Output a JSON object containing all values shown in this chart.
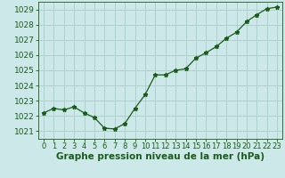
{
  "x": [
    0,
    1,
    2,
    3,
    4,
    5,
    6,
    7,
    8,
    9,
    10,
    11,
    12,
    13,
    14,
    15,
    16,
    17,
    18,
    19,
    20,
    21,
    22,
    23
  ],
  "y": [
    1022.2,
    1022.5,
    1022.4,
    1022.6,
    1022.2,
    1021.9,
    1021.2,
    1021.15,
    1021.5,
    1022.5,
    1023.4,
    1024.7,
    1024.7,
    1025.0,
    1025.1,
    1025.8,
    1026.15,
    1026.55,
    1027.1,
    1027.5,
    1028.2,
    1028.65,
    1029.05,
    1029.15
  ],
  "line_color": "#1a5c1a",
  "marker": "*",
  "bg_color": "#cce8e8",
  "grid_color": "#b0d0d0",
  "title": "Graphe pression niveau de la mer (hPa)",
  "xlabel_ticks": [
    "0",
    "1",
    "2",
    "3",
    "4",
    "5",
    "6",
    "7",
    "8",
    "9",
    "10",
    "11",
    "12",
    "13",
    "14",
    "15",
    "16",
    "17",
    "18",
    "19",
    "20",
    "21",
    "22",
    "23"
  ],
  "ylim": [
    1020.5,
    1029.5
  ],
  "yticks": [
    1021,
    1022,
    1023,
    1024,
    1025,
    1026,
    1027,
    1028,
    1029
  ],
  "title_color": "#1a5c1a",
  "title_fontsize": 7.5,
  "tick_fontsize": 6.5,
  "tick_color": "#1a5c1a"
}
